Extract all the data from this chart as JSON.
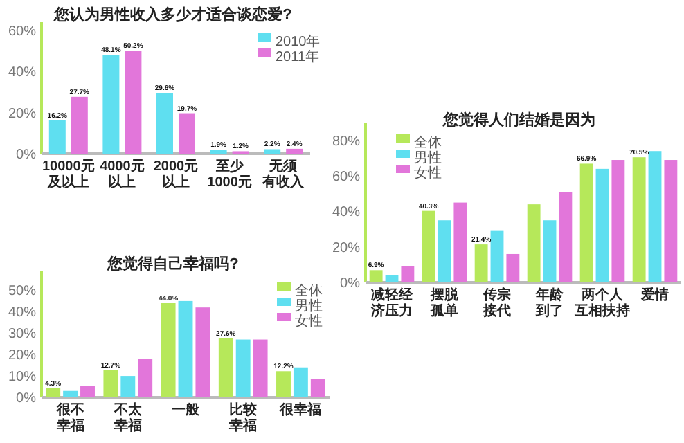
{
  "chart_data": [
    {
      "type": "bar",
      "title": "您认为男性收入多少才适合谈恋爱?",
      "categories": [
        "10000元及以上",
        "4000元以上",
        "2000元以上",
        "至少1000元",
        "无须有收入"
      ],
      "series": [
        {
          "name": "2010年",
          "color": "#5fdff0",
          "values": [
            16.2,
            48.1,
            29.6,
            1.9,
            2.2
          ],
          "value_labels": [
            "16.2%",
            "48.1%",
            "29.6%",
            "1.9%",
            "2.2%"
          ]
        },
        {
          "name": "2011年",
          "color": "#e276da",
          "values": [
            27.7,
            50.2,
            19.7,
            1.2,
            2.4
          ],
          "value_labels": [
            "27.7%",
            "50.2%",
            "19.7%",
            "1.2%",
            "2.4%"
          ]
        }
      ],
      "ylim": [
        0,
        60
      ],
      "yticks": [
        {
          "value": 0,
          "label": "0%"
        },
        {
          "value": 20,
          "label": "20%"
        },
        {
          "value": 40,
          "label": "40%"
        },
        {
          "value": 60,
          "label": "60%"
        }
      ],
      "legend": "top right"
    },
    {
      "type": "bar",
      "title": "您觉得自己幸福吗?",
      "categories": [
        "很不幸福",
        "不太幸福",
        "一般",
        "比较幸福",
        "很幸福"
      ],
      "series": [
        {
          "name": "全体",
          "color": "#b6e85a",
          "values": [
            4.3,
            12.7,
            44.0,
            27.6,
            12.2
          ],
          "value_labels": [
            "4.3%",
            "12.7%",
            "44.0%",
            "27.6%",
            "12.2%"
          ]
        },
        {
          "name": "男性",
          "color": "#5fdff0",
          "values": [
            3,
            10,
            45,
            27,
            14
          ]
        },
        {
          "name": "女性",
          "color": "#e276da",
          "values": [
            5.5,
            18,
            42,
            27,
            8.5
          ]
        }
      ],
      "ylim": [
        0,
        55
      ],
      "yticks": [
        {
          "value": 0,
          "label": "0%"
        },
        {
          "value": 10,
          "label": "10%"
        },
        {
          "value": 20,
          "label": "20%"
        },
        {
          "value": 30,
          "label": "30%"
        },
        {
          "value": 40,
          "label": "40%"
        },
        {
          "value": 50,
          "label": "50%"
        }
      ],
      "legend": "top right"
    },
    {
      "type": "bar",
      "title": "您觉得人们结婚是因为",
      "categories": [
        "减轻经济压力",
        "摆脱孤单",
        "传宗接代",
        "年龄到了",
        "两个人互相扶持",
        "爱情"
      ],
      "series": [
        {
          "name": "全体",
          "color": "#b6e85a",
          "values": [
            6.9,
            40.3,
            21.4,
            44,
            66.9,
            70.5
          ],
          "value_labels": [
            "6.9%",
            "40.3%",
            "21.4%",
            null,
            "66.9%",
            "70.5%"
          ]
        },
        {
          "name": "男性",
          "color": "#5fdff0",
          "values": [
            4,
            35,
            29,
            35,
            64,
            74
          ]
        },
        {
          "name": "女性",
          "color": "#e276da",
          "values": [
            9,
            45,
            16,
            51,
            69,
            69
          ]
        }
      ],
      "ylim": [
        0,
        85
      ],
      "yticks": [
        {
          "value": 0,
          "label": "0%"
        },
        {
          "value": 20,
          "label": "20%"
        },
        {
          "value": 40,
          "label": "40%"
        },
        {
          "value": 60,
          "label": "60%"
        },
        {
          "value": 80,
          "label": "80%"
        }
      ],
      "legend": "top left"
    }
  ]
}
